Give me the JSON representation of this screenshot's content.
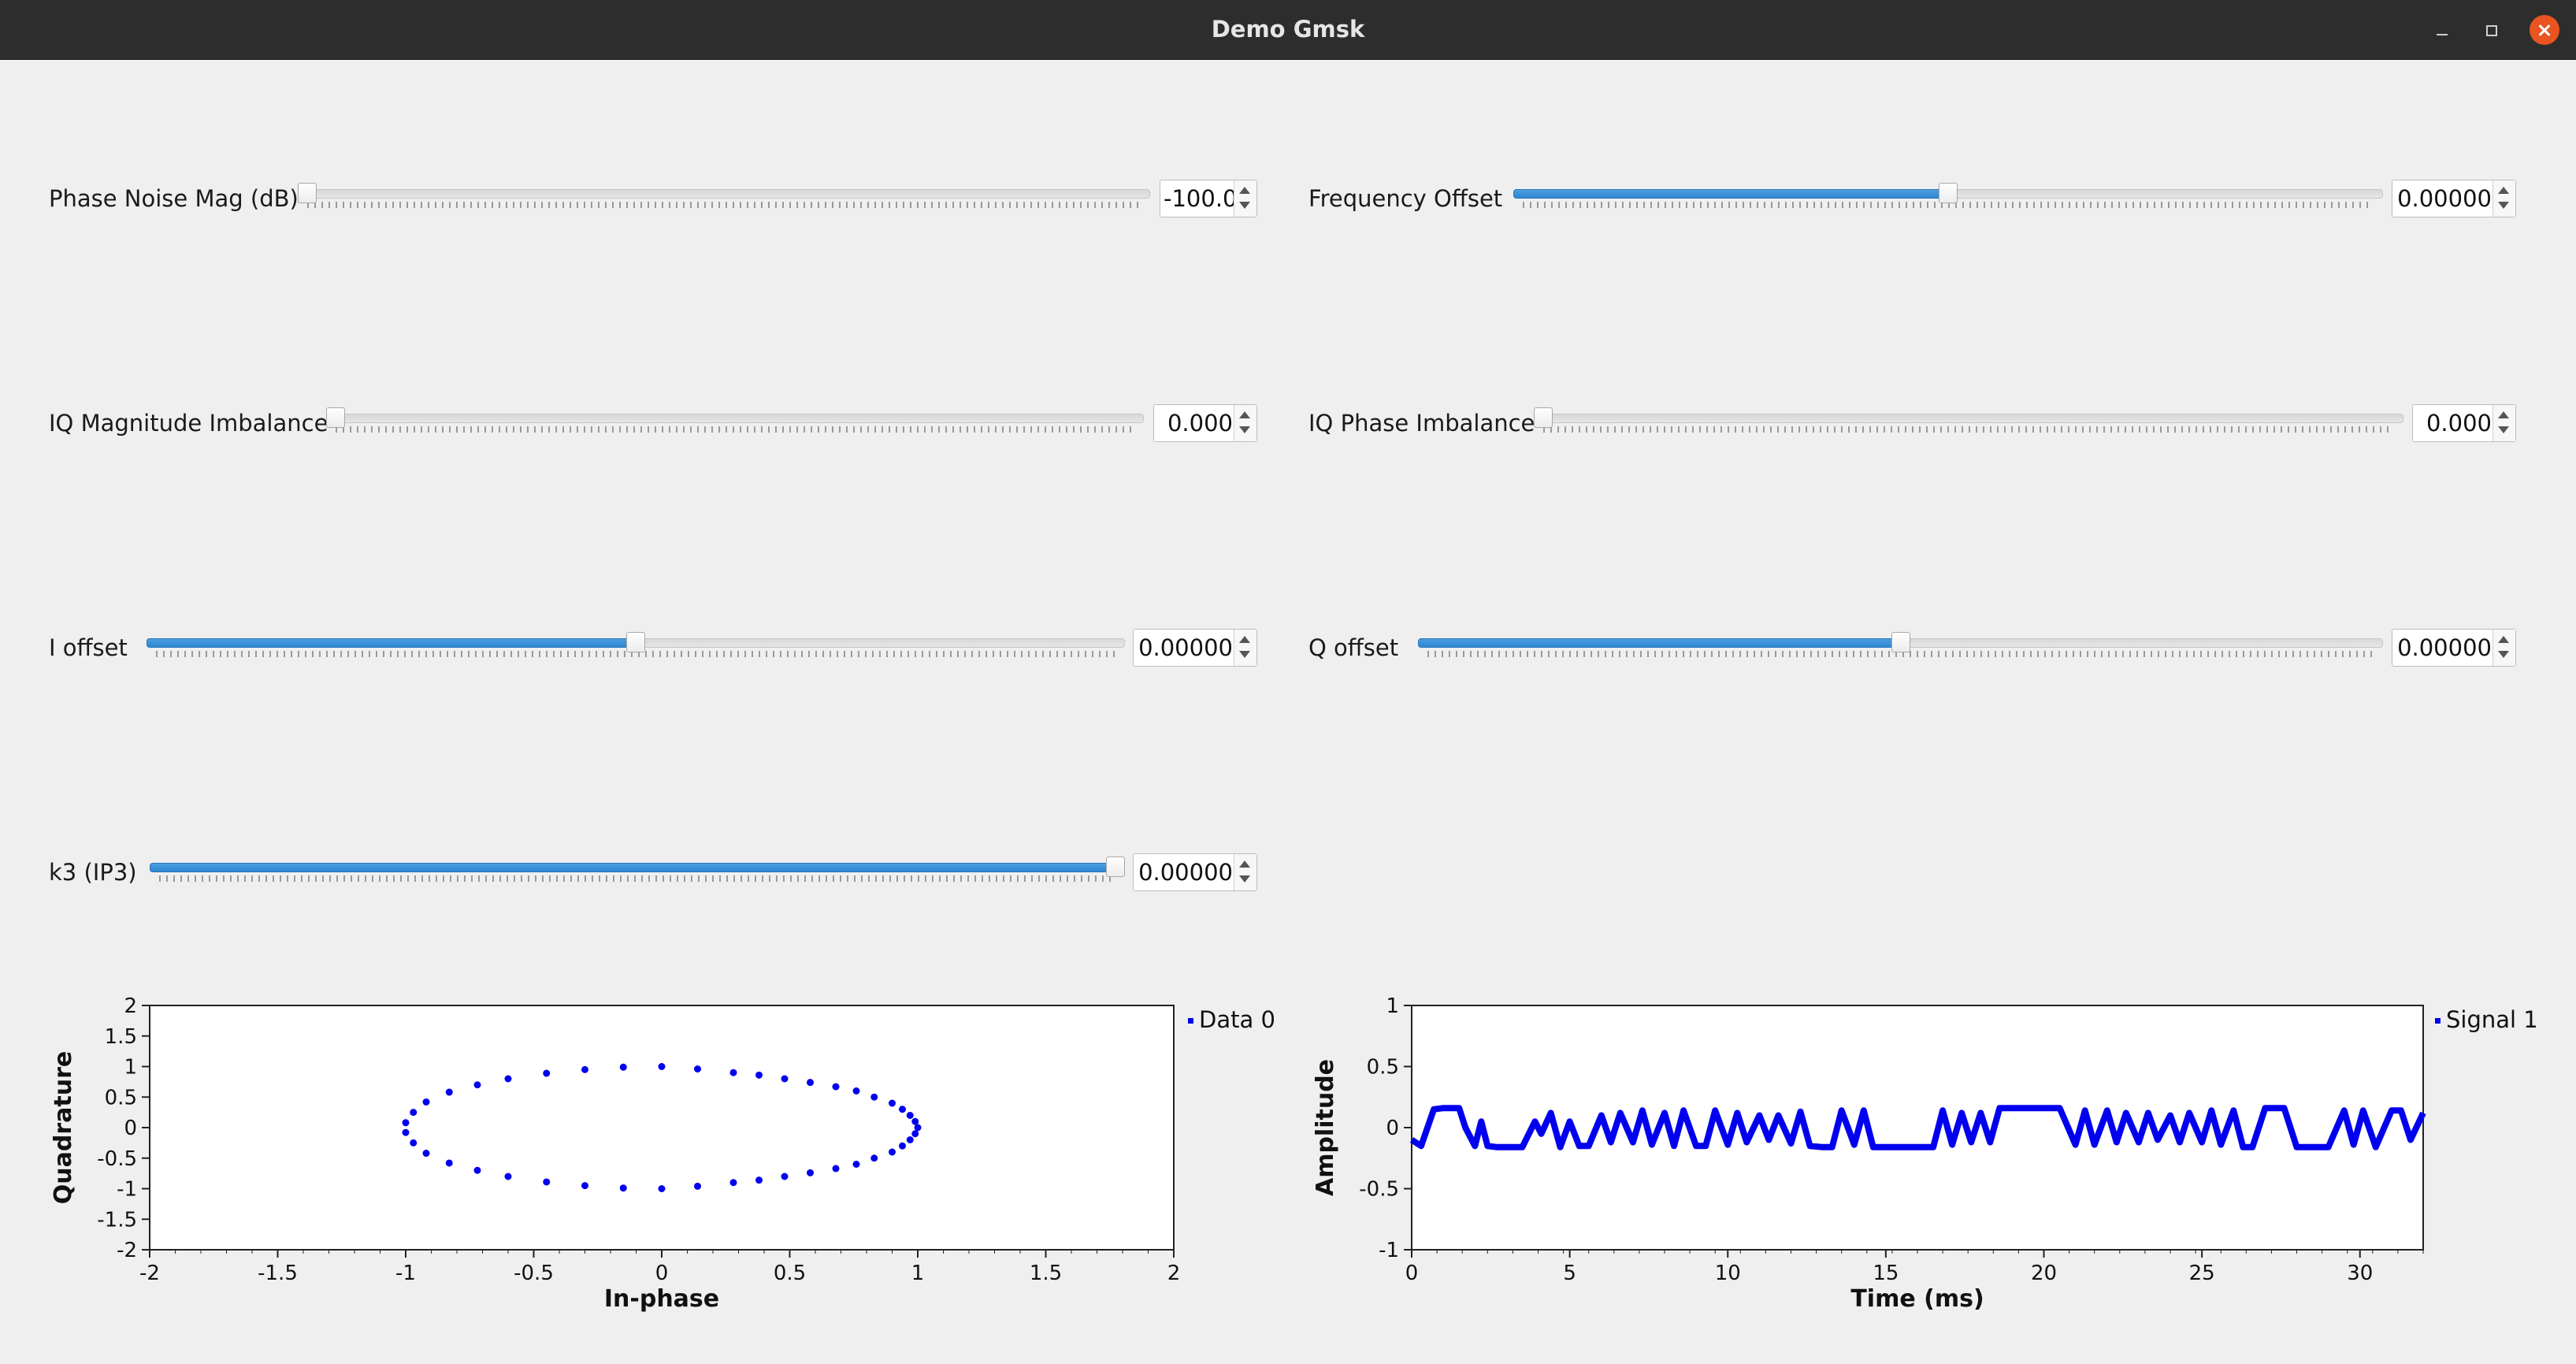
{
  "window": {
    "title": "Demo Gmsk"
  },
  "controls": [
    {
      "id": "phase-noise",
      "label": "Phase Noise Mag (dB)",
      "value": "-100.0",
      "level": 0.0
    },
    {
      "id": "frequency-offset",
      "label": "Frequency Offset",
      "value": "0.00000",
      "level": 0.5
    },
    {
      "id": "iq-magnitude-imbalance",
      "label": "IQ Magnitude Imbalance",
      "value": "0.000",
      "level": 0.0
    },
    {
      "id": "iq-phase-imbalance",
      "label": "IQ Phase Imbalance",
      "value": "0.000",
      "level": 0.0
    },
    {
      "id": "i-offset",
      "label": "I offset",
      "value": "0.00000",
      "level": 0.5
    },
    {
      "id": "q-offset",
      "label": "Q offset",
      "value": "0.00000",
      "level": 0.5
    },
    {
      "id": "k3",
      "label": "k3 (IP3)",
      "value": "0.00000",
      "level": 1.0
    }
  ],
  "colors": {
    "accent": "#3a8fd6",
    "series": "#0000ee",
    "close": "#e95420"
  },
  "chart_data": [
    {
      "type": "scatter",
      "title": "",
      "xlabel": "In-phase",
      "ylabel": "Quadrature",
      "xlim": [
        -2,
        2
      ],
      "ylim": [
        -2,
        2
      ],
      "xticks": [
        "-2",
        "-1.5",
        "-1",
        "-0.5",
        "0",
        "0.5",
        "1",
        "1.5",
        "2"
      ],
      "yticks": [
        "2",
        "1.5",
        "1",
        "0.5",
        "0",
        "-0.5",
        "-1",
        "-1.5",
        "-2"
      ],
      "legend": "top-right",
      "series": [
        {
          "name": "Data 0",
          "points": [
            [
              1.0,
              0.0
            ],
            [
              0.99,
              0.1
            ],
            [
              0.97,
              0.2
            ],
            [
              0.94,
              0.3
            ],
            [
              0.9,
              0.4
            ],
            [
              0.83,
              0.5
            ],
            [
              0.76,
              0.6
            ],
            [
              0.68,
              0.67
            ],
            [
              0.58,
              0.74
            ],
            [
              0.48,
              0.8
            ],
            [
              0.38,
              0.86
            ],
            [
              0.28,
              0.9
            ],
            [
              0.14,
              0.96
            ],
            [
              0.0,
              1.0
            ],
            [
              -0.15,
              0.99
            ],
            [
              -0.3,
              0.95
            ],
            [
              -0.45,
              0.89
            ],
            [
              -0.6,
              0.8
            ],
            [
              -0.72,
              0.7
            ],
            [
              -0.83,
              0.58
            ],
            [
              -0.92,
              0.42
            ],
            [
              -0.97,
              0.25
            ],
            [
              -1.0,
              0.08
            ],
            [
              -1.0,
              -0.08
            ],
            [
              -0.97,
              -0.25
            ],
            [
              -0.92,
              -0.42
            ],
            [
              -0.83,
              -0.58
            ],
            [
              -0.72,
              -0.7
            ],
            [
              -0.6,
              -0.8
            ],
            [
              -0.45,
              -0.89
            ],
            [
              -0.3,
              -0.95
            ],
            [
              -0.15,
              -0.99
            ],
            [
              0.0,
              -1.0
            ],
            [
              0.14,
              -0.96
            ],
            [
              0.28,
              -0.9
            ],
            [
              0.38,
              -0.86
            ],
            [
              0.48,
              -0.8
            ],
            [
              0.58,
              -0.74
            ],
            [
              0.68,
              -0.67
            ],
            [
              0.76,
              -0.6
            ],
            [
              0.83,
              -0.5
            ],
            [
              0.9,
              -0.4
            ],
            [
              0.94,
              -0.3
            ],
            [
              0.97,
              -0.2
            ],
            [
              0.99,
              -0.1
            ]
          ]
        }
      ]
    },
    {
      "type": "line",
      "title": "",
      "xlabel": "Time (ms)",
      "ylabel": "Amplitude",
      "xlim": [
        0,
        32
      ],
      "ylim": [
        -1,
        1
      ],
      "xticks": [
        "0",
        "5",
        "10",
        "15",
        "20",
        "25",
        "30"
      ],
      "yticks": [
        "1",
        "0.5",
        "0",
        "-0.5",
        "-1"
      ],
      "legend": "top-right",
      "series": [
        {
          "name": "Signal 1",
          "x": [
            0,
            0.3,
            0.7,
            1.0,
            1.5,
            1.7,
            2.0,
            2.2,
            2.4,
            2.7,
            3.0,
            3.5,
            3.9,
            4.1,
            4.4,
            4.7,
            5.0,
            5.3,
            5.6,
            6.0,
            6.3,
            6.6,
            7.0,
            7.3,
            7.6,
            8.0,
            8.3,
            8.6,
            9.0,
            9.3,
            9.6,
            10.0,
            10.3,
            10.6,
            11.0,
            11.3,
            11.6,
            12.0,
            12.3,
            12.6,
            13.0,
            13.3,
            13.6,
            14.0,
            14.3,
            14.6,
            15.0,
            15.5,
            16.0,
            16.5,
            16.8,
            17.1,
            17.4,
            17.7,
            18.0,
            18.3,
            18.6,
            19.0,
            19.5,
            20.0,
            20.5,
            21.0,
            21.3,
            21.6,
            22.0,
            22.3,
            22.6,
            23.0,
            23.3,
            23.6,
            24.0,
            24.3,
            24.6,
            25.0,
            25.3,
            25.6,
            26.0,
            26.3,
            26.6,
            27.0,
            27.3,
            27.6,
            28.0,
            28.5,
            29.0,
            29.5,
            29.8,
            30.1,
            30.5,
            31.0,
            31.3,
            31.6,
            32.0
          ],
          "y": [
            -0.1,
            -0.15,
            0.15,
            0.16,
            0.16,
            0.0,
            -0.15,
            0.05,
            -0.15,
            -0.16,
            -0.16,
            -0.16,
            0.05,
            -0.05,
            0.12,
            -0.16,
            0.05,
            -0.15,
            -0.15,
            0.1,
            -0.12,
            0.12,
            -0.12,
            0.14,
            -0.14,
            0.12,
            -0.15,
            0.14,
            -0.15,
            -0.15,
            0.14,
            -0.14,
            0.12,
            -0.12,
            0.1,
            -0.1,
            0.1,
            -0.13,
            0.13,
            -0.15,
            -0.16,
            -0.16,
            0.14,
            -0.14,
            0.14,
            -0.16,
            -0.16,
            -0.16,
            -0.16,
            -0.16,
            0.14,
            -0.14,
            0.12,
            -0.12,
            0.12,
            -0.12,
            0.16,
            0.16,
            0.16,
            0.16,
            0.16,
            -0.14,
            0.14,
            -0.14,
            0.14,
            -0.12,
            0.12,
            -0.12,
            0.12,
            -0.1,
            0.1,
            -0.12,
            0.12,
            -0.12,
            0.14,
            -0.14,
            0.14,
            -0.16,
            -0.16,
            0.16,
            0.16,
            0.16,
            -0.16,
            -0.16,
            -0.16,
            0.14,
            -0.14,
            0.14,
            -0.16,
            0.14,
            0.14,
            -0.1,
            0.12
          ]
        }
      ]
    }
  ]
}
